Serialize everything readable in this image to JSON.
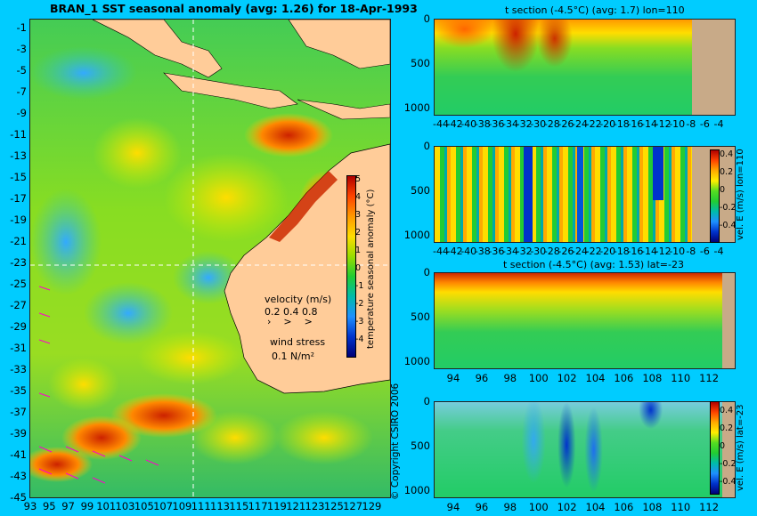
{
  "map": {
    "title": "BRAN_1 SST seasonal anomaly (avg: 1.26) for 18-Apr-1993",
    "y_ticks": [
      "-1",
      "-3",
      "-5",
      "-7",
      "-9",
      "-11",
      "-13",
      "-15",
      "-17",
      "-19",
      "-21",
      "-23",
      "-25",
      "-27",
      "-29",
      "-31",
      "-33",
      "-35",
      "-37",
      "-39",
      "-41",
      "-43",
      "-45"
    ],
    "x_ticks": [
      "93",
      "95",
      "97",
      "99",
      "101",
      "103",
      "105",
      "107",
      "109",
      "111",
      "113",
      "115",
      "117",
      "119",
      "121",
      "123",
      "125",
      "127",
      "129"
    ],
    "colorbar_ticks": [
      "5",
      "4",
      "3",
      "2",
      "1",
      "0",
      "-1",
      "-2",
      "-3",
      "-4"
    ],
    "colorbar_label": "temperature seasonal anomaly (°C)",
    "velocity_label": "velocity (m/s)",
    "velocity_scale": "0.2 0.4 0.8",
    "wind_label": "wind stress",
    "wind_scale": "0.1 N/m²",
    "copyright": "© Copyright CSIRO 2006"
  },
  "panels": {
    "p1": {
      "title": "t section (-4.5°C) (avg: 1.7) lon=110",
      "x_ticks": [
        "-44",
        "-42",
        "-40",
        "-38",
        "-36",
        "-34",
        "-32",
        "-30",
        "-28",
        "-26",
        "-24",
        "-22",
        "-20",
        "-18",
        "-16",
        "-14",
        "-12",
        "-10",
        "-8",
        "-6",
        "-4"
      ],
      "y_ticks": [
        "0",
        "500",
        "1000"
      ]
    },
    "p2": {
      "x_ticks": [
        "-44",
        "-42",
        "-40",
        "-38",
        "-36",
        "-34",
        "-32",
        "-30",
        "-28",
        "-26",
        "-24",
        "-22",
        "-20",
        "-18",
        "-16",
        "-14",
        "-12",
        "-10",
        "-8",
        "-6",
        "-4"
      ],
      "y_ticks": [
        "0",
        "500",
        "1000"
      ],
      "colorbar_ticks": [
        "0.4",
        "0.2",
        "0",
        "-0.2",
        "-0.4"
      ],
      "colorbar_label": "vel. E (m/s) lon=110"
    },
    "p3": {
      "title": "t section (-4.5°C) (avg: 1.53) lat=-23",
      "x_ticks": [
        "94",
        "96",
        "98",
        "100",
        "102",
        "104",
        "106",
        "108",
        "110",
        "112"
      ],
      "y_ticks": [
        "0",
        "500",
        "1000"
      ]
    },
    "p4": {
      "x_ticks": [
        "94",
        "96",
        "98",
        "100",
        "102",
        "104",
        "106",
        "108",
        "110",
        "112"
      ],
      "y_ticks": [
        "0",
        "500",
        "1000"
      ],
      "colorbar_ticks": [
        "0.4",
        "0.2",
        "0",
        "-0.2",
        "-0.4"
      ],
      "colorbar_label": "vel. E (m/s) lat=-23"
    }
  },
  "colors": {
    "background": "#00ccff",
    "land": "#ffcc99",
    "seabed": "#c8aa88",
    "anomaly_warm": "#cc2a00",
    "anomaly_neutral": "#22cc33",
    "anomaly_cool": "#1e90ff"
  }
}
